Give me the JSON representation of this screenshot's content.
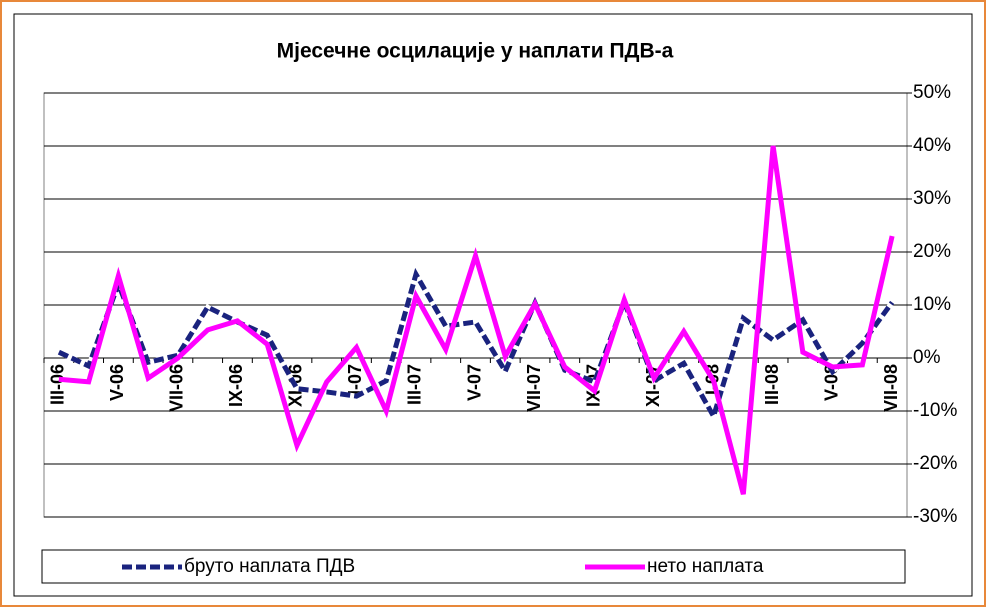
{
  "chart_data": {
    "type": "line",
    "title": "Мјесечне осцилације у наплати ПДВ-а",
    "categories": [
      "III-06",
      null,
      "V-06",
      null,
      "VII-06",
      null,
      "IX-06",
      null,
      "XI-06",
      null,
      "I-07",
      null,
      "III-07",
      null,
      "V-07",
      null,
      "VII-07",
      null,
      "IX-07",
      null,
      "XI-07",
      null,
      "I-08",
      null,
      "III-08",
      null,
      "V-08",
      null,
      "VII-08"
    ],
    "series": [
      {
        "name": "бруто наплата ПДВ",
        "color": "#1a237e",
        "dash": true,
        "values": [
          1.1,
          -1.5,
          14,
          -0.8,
          0.5,
          9.6,
          6.8,
          4.3,
          -5.8,
          -6.4,
          -7.2,
          -4.3,
          15.8,
          6,
          6.8,
          -2.5,
          10.4,
          -2.3,
          -4.5,
          10.6,
          -4.3,
          -1,
          -11,
          7.5,
          3.4,
          7.2,
          -2.6,
          2.8,
          10.5
        ]
      },
      {
        "name": "нето наплата",
        "color": "#ff00ff",
        "dash": false,
        "values": [
          -4,
          -4.5,
          15.5,
          -3.8,
          0,
          5.3,
          7,
          2.6,
          -16.5,
          -4.5,
          2,
          -10,
          11.7,
          1.6,
          19.3,
          0.3,
          10.2,
          -1.7,
          -6.2,
          11,
          -3.8,
          5,
          -4.3,
          -25.7,
          40,
          1.1,
          -1.7,
          -1.3,
          23
        ]
      }
    ],
    "ylim": [
      -30,
      50
    ],
    "yticks": [
      {
        "value": -30,
        "label": "-30%"
      },
      {
        "value": -20,
        "label": "-20%"
      },
      {
        "value": -10,
        "label": "-10%"
      },
      {
        "value": 0,
        "label": "0%"
      },
      {
        "value": 10,
        "label": "10%"
      },
      {
        "value": 20,
        "label": "20%"
      },
      {
        "value": 30,
        "label": "30%"
      },
      {
        "value": 40,
        "label": "40%"
      },
      {
        "value": 50,
        "label": "50%"
      }
    ],
    "grid": true,
    "legend": "bottom"
  }
}
